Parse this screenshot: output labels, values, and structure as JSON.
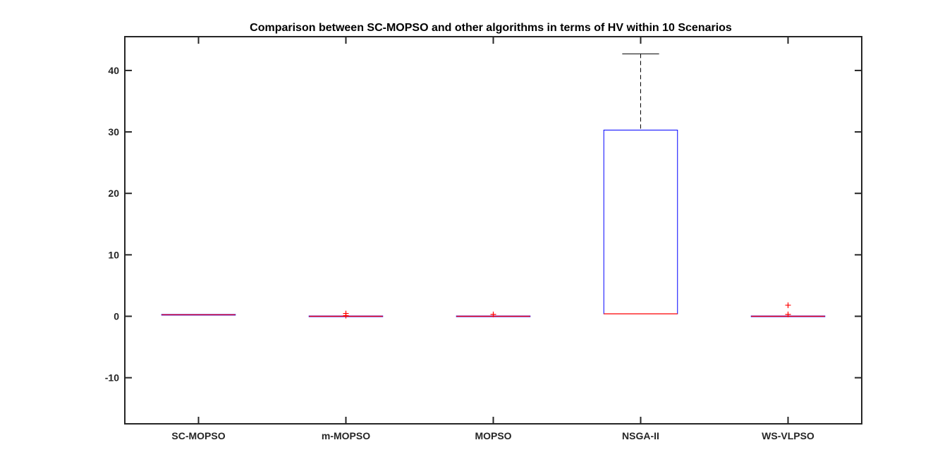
{
  "chart_data": {
    "type": "box",
    "title": "Comparison between SC-MOPSO and other algorithms in terms of HV within 10 Scenarios",
    "xlabel": "",
    "ylabel": "",
    "ylim": [
      -17.5,
      45.5
    ],
    "yticks": [
      -10,
      0,
      10,
      20,
      30,
      40
    ],
    "grid": false,
    "categories": [
      "SC-MOPSO",
      "m-MOPSO",
      "MOPSO",
      "NSGA-II",
      "WS-VLPSO"
    ],
    "boxes": [
      {
        "category": "SC-MOPSO",
        "q1": 0.2,
        "median": 0.25,
        "q3": 0.3,
        "whisker_low": 0.2,
        "whisker_high": 0.3,
        "outliers": []
      },
      {
        "category": "m-MOPSO",
        "q1": 0.0,
        "median": 0.0,
        "q3": 0.05,
        "whisker_low": 0.0,
        "whisker_high": 0.05,
        "outliers": [
          0.45,
          0.1
        ]
      },
      {
        "category": "MOPSO",
        "q1": 0.0,
        "median": 0.0,
        "q3": 0.05,
        "whisker_low": 0.0,
        "whisker_high": 0.05,
        "outliers": [
          0.3
        ]
      },
      {
        "category": "NSGA-II",
        "q1": 0.4,
        "median": 0.4,
        "q3": 30.3,
        "whisker_low": 0.4,
        "whisker_high": 42.7,
        "outliers": []
      },
      {
        "category": "WS-VLPSO",
        "q1": 0.0,
        "median": 0.0,
        "q3": 0.05,
        "whisker_low": 0.0,
        "whisker_high": 0.05,
        "outliers": [
          1.8,
          0.3
        ]
      }
    ],
    "colors": {
      "box": "#0000ff",
      "median": "#ff0000",
      "whisker": "#000000",
      "outlier": "#ff0000",
      "axis": "#262626"
    }
  }
}
